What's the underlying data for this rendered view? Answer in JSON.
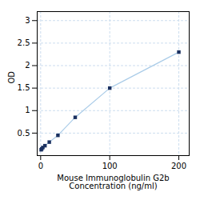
{
  "chart_data": {
    "type": "line",
    "x": [
      0.78,
      1.56,
      3.13,
      6.25,
      12.5,
      25,
      50,
      100,
      200
    ],
    "values": [
      0.13,
      0.15,
      0.18,
      0.22,
      0.3,
      0.45,
      0.85,
      1.5,
      2.3
    ],
    "color": "#aacce8",
    "marker_color": "#1a3060",
    "marker": "square",
    "xlabel": "Mouse Immunoglobulin G2b\nConcentration (ng/ml)",
    "ylabel": "OD",
    "xlim": [
      -5,
      215
    ],
    "ylim": [
      0,
      3.2
    ],
    "xticks": [
      0,
      100,
      200
    ],
    "yticks": [
      0.5,
      1,
      1.5,
      2,
      2.5,
      3
    ],
    "grid": true
  }
}
